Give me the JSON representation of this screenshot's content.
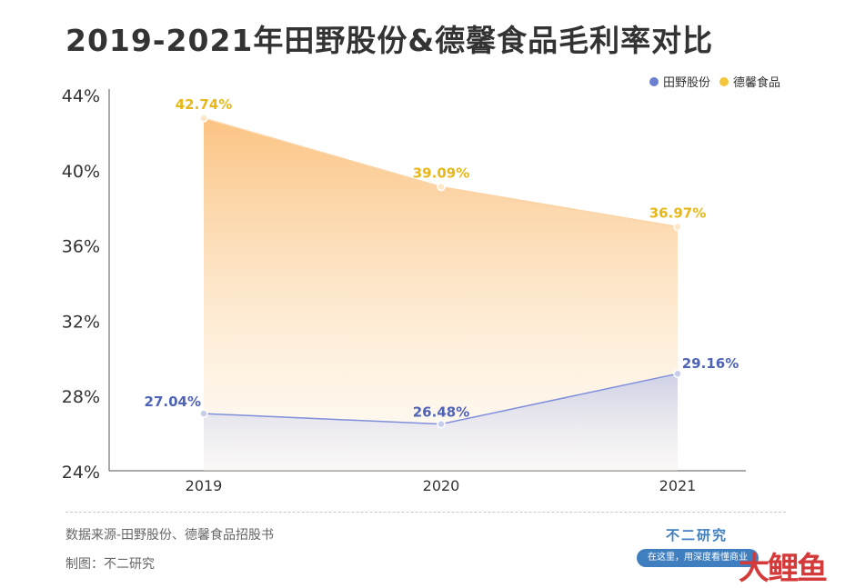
{
  "title": "2019-2021年田野股份&德馨食品毛利率对比",
  "legend": [
    {
      "name": "田野股份",
      "color": "#6b7fd1"
    },
    {
      "name": "德馨食品",
      "color": "#f3c53a"
    }
  ],
  "chart_data": {
    "type": "area",
    "categories": [
      "2019",
      "2020",
      "2021"
    ],
    "series": [
      {
        "name": "德馨食品",
        "values": [
          42.74,
          39.09,
          36.97
        ],
        "labels": [
          "42.74%",
          "39.09%",
          "36.97%"
        ],
        "color": "#e8b818"
      },
      {
        "name": "田野股份",
        "values": [
          27.04,
          26.48,
          29.16
        ],
        "labels": [
          "27.04%",
          "26.48%",
          "29.16%"
        ],
        "color": "#4f63b8"
      }
    ],
    "ylim": [
      24,
      44
    ],
    "yticks": [
      24,
      28,
      32,
      36,
      40,
      44
    ],
    "ytick_labels": [
      "24%",
      "28%",
      "32%",
      "36%",
      "40%",
      "44%"
    ],
    "grid": false,
    "legend_position": "top-right"
  },
  "footer": {
    "source": "数据来源-田野股份、德馨食品招股书",
    "maker": "制图：不二研究",
    "brand": "不二研究",
    "slogan": "在这里，用深度看懂商业",
    "watermark": "大鲤鱼"
  }
}
